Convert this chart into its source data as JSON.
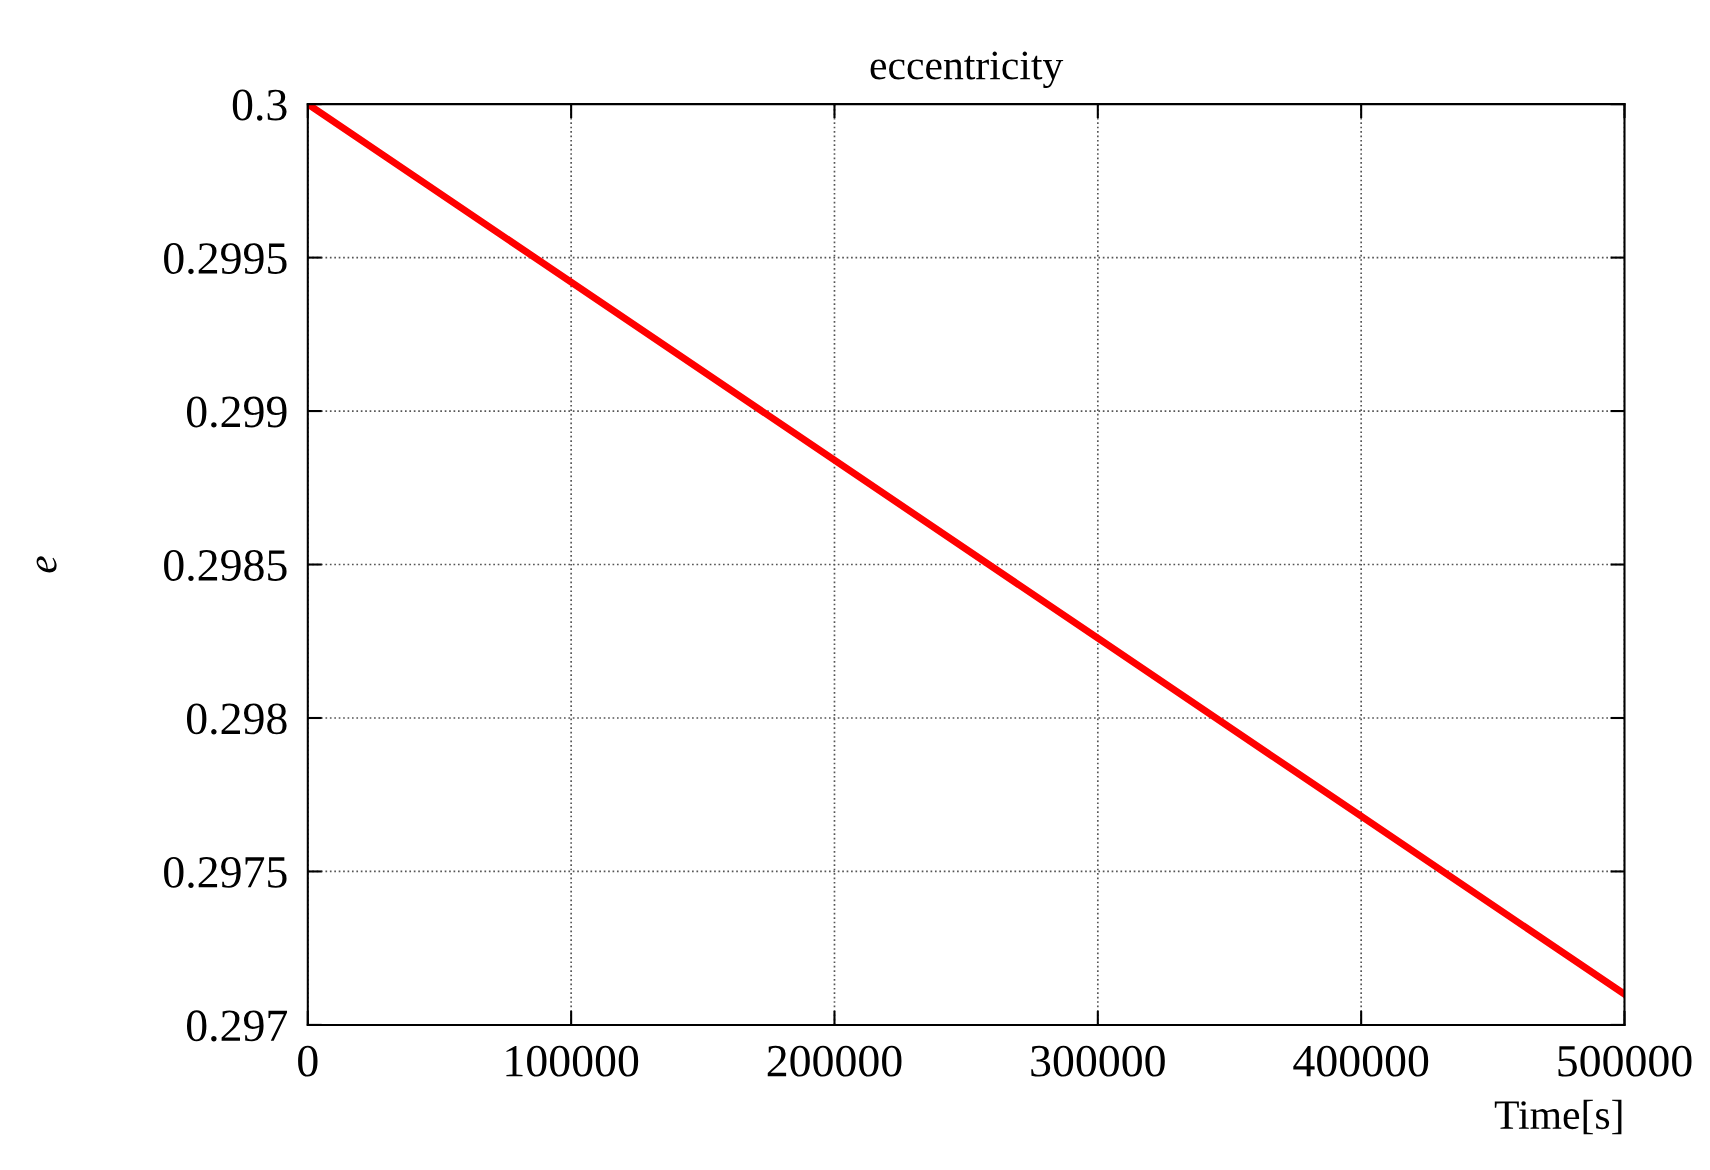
{
  "chart_data": {
    "type": "line",
    "title": "eccentricity",
    "xlabel": "Time[s]",
    "ylabel": "e",
    "x": [
      0,
      100000,
      200000,
      300000,
      400000,
      500000
    ],
    "series": [
      {
        "color": "#ff0000",
        "values": [
          0.3,
          0.29942,
          0.29884,
          0.29826,
          0.29768,
          0.2971
        ]
      }
    ],
    "xlim": [
      0,
      500000
    ],
    "ylim": [
      0.297,
      0.3
    ],
    "xticks": [
      0,
      100000,
      200000,
      300000,
      400000,
      500000
    ],
    "yticks": [
      0.297,
      0.2975,
      0.298,
      0.2985,
      0.299,
      0.2995,
      {
        "value": 0.3,
        "label": "0.3"
      }
    ],
    "grid": true,
    "marker": "none",
    "line_style": "solid"
  }
}
